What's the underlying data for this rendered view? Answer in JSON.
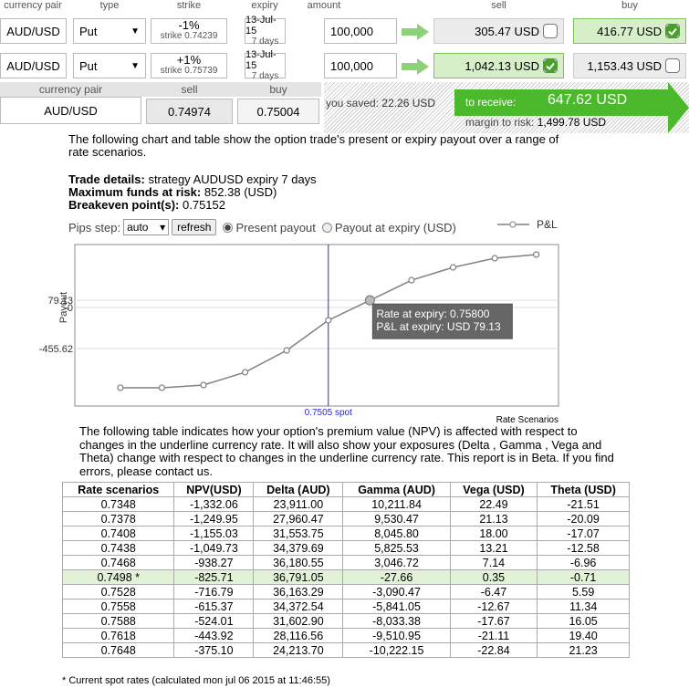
{
  "trades": {
    "headers": [
      "currency pair",
      "type",
      "strike",
      "expiry",
      "amount",
      "sell",
      "buy"
    ],
    "rows": [
      {
        "pair": "AUD/USD",
        "type": "Put",
        "change": "-1%",
        "strike": "strike 0.74239",
        "expiry": "13-Jul-15",
        "days": "7 days",
        "amount": "100,000",
        "sell": "305.47 USD",
        "sell_checked": false,
        "buy": "416.77 USD",
        "buy_checked": true
      },
      {
        "pair": "AUD/USD",
        "type": "Put",
        "change": "+1%",
        "strike": "strike 0.75739",
        "expiry": "13-Jul-15",
        "days": "7 days",
        "amount": "100,000",
        "sell": "1,042.13 USD",
        "sell_checked": true,
        "buy": "1,153.43 USD",
        "buy_checked": false
      }
    ]
  },
  "quote": {
    "headers": [
      "currency pair",
      "sell",
      "buy"
    ],
    "pair": "AUD/USD",
    "sell": "0.74974",
    "buy": "0.75004"
  },
  "summary": {
    "saved_label": "you saved:",
    "saved": "22.26 USD",
    "receive_label": "to receive:",
    "receive": "647.62 USD",
    "margin_label": "margin to risk:",
    "margin": "1,499.78 USD"
  },
  "intro": "The following chart and table show the option trade's present or expiry payout over a range of rate scenarios.",
  "trade_details": [
    {
      "label": "Trade details:",
      "value": "strategy AUDUSD expiry 7 days"
    },
    {
      "label": "Maximum funds at risk:",
      "value": "852.38 (USD)"
    },
    {
      "label": "Breakeven point(s):",
      "value": "0.75152"
    }
  ],
  "controls": {
    "pips_label": "Pips step:",
    "pips_value": "auto",
    "refresh": "refresh",
    "options": [
      "Present payout",
      "Payout at expiry (USD)"
    ],
    "selected": 0
  },
  "chart_data": {
    "type": "line",
    "x": [
      0.713,
      0.7205,
      0.728,
      0.7355,
      0.743,
      0.7505,
      0.758,
      0.7655,
      0.773,
      0.7805,
      0.788
    ],
    "series": [
      {
        "name": "P&L",
        "color": "#808080",
        "values": [
          -890,
          -890,
          -860,
          -718,
          -476,
          -142,
          79.13,
          303,
          445,
          546,
          587
        ]
      }
    ],
    "xlim": [
      0.7048,
      0.792
    ],
    "ylim": [
      -1093,
      698
    ],
    "yticks": [
      79.13,
      0,
      -455.62
    ],
    "grid": true,
    "y_label": "Payout",
    "x_label": "Rate Scenarios",
    "spot": {
      "x": 0.7505,
      "label": "0.7505 spot",
      "color": "#2a2ac8"
    },
    "tooltip": {
      "x": 0.758,
      "lines": [
        "Rate at expiry: 0.75800",
        "P&L at expiry: USD 79.13"
      ]
    }
  },
  "table": {
    "description": "The following table indicates how your option's premium value (NPV) is affected with respect to changes in the underline currency rate. It will also show your exposures (Delta , Gamma , Vega and Theta) change with respect to changes in the underline currency rate. This report is in Beta. If you find errors, please contact us.",
    "headers": [
      "Rate scenarios",
      "NPV(USD)",
      "Delta (AUD)",
      "Gamma (AUD)",
      "Vega (USD)",
      "Theta (USD)"
    ],
    "rows": [
      [
        "0.7348",
        "-1,332.06",
        "23,911.00",
        "10,211.84",
        "22.49",
        "-21.51"
      ],
      [
        "0.7378",
        "-1,249.95",
        "27,960.47",
        "9,530.47",
        "21.13",
        "-20.09"
      ],
      [
        "0.7408",
        "-1,155.03",
        "31,553.75",
        "8,045.80",
        "18.00",
        "-17.07"
      ],
      [
        "0.7438",
        "-1,049.73",
        "34,379.69",
        "5,825.53",
        "13.21",
        "-12.58"
      ],
      [
        "0.7468",
        "-938.27",
        "36,180.55",
        "3,046.72",
        "7.14",
        "-6.96"
      ],
      [
        "0.7498 *",
        "-825.71",
        "36,791.05",
        "-27.66",
        "0.35",
        "-0.71"
      ],
      [
        "0.7528",
        "-716.79",
        "36,163.29",
        "-3,090.47",
        "-6.47",
        "5.59"
      ],
      [
        "0.7558",
        "-615.37",
        "34,372.54",
        "-5,841.05",
        "-12.67",
        "11.34"
      ],
      [
        "0.7588",
        "-524.01",
        "31,602.90",
        "-8,033.38",
        "-17.67",
        "16.05"
      ],
      [
        "0.7618",
        "-443.92",
        "28,116.56",
        "-9,510.95",
        "-21.11",
        "19.40"
      ],
      [
        "0.7648",
        "-375.10",
        "24,213.70",
        "-10,222.15",
        "-22.84",
        "21.23"
      ]
    ],
    "highlight_row": 5
  },
  "footnote": "* Current spot rates (calculated mon jul 06 2015 at 11:46:55)"
}
